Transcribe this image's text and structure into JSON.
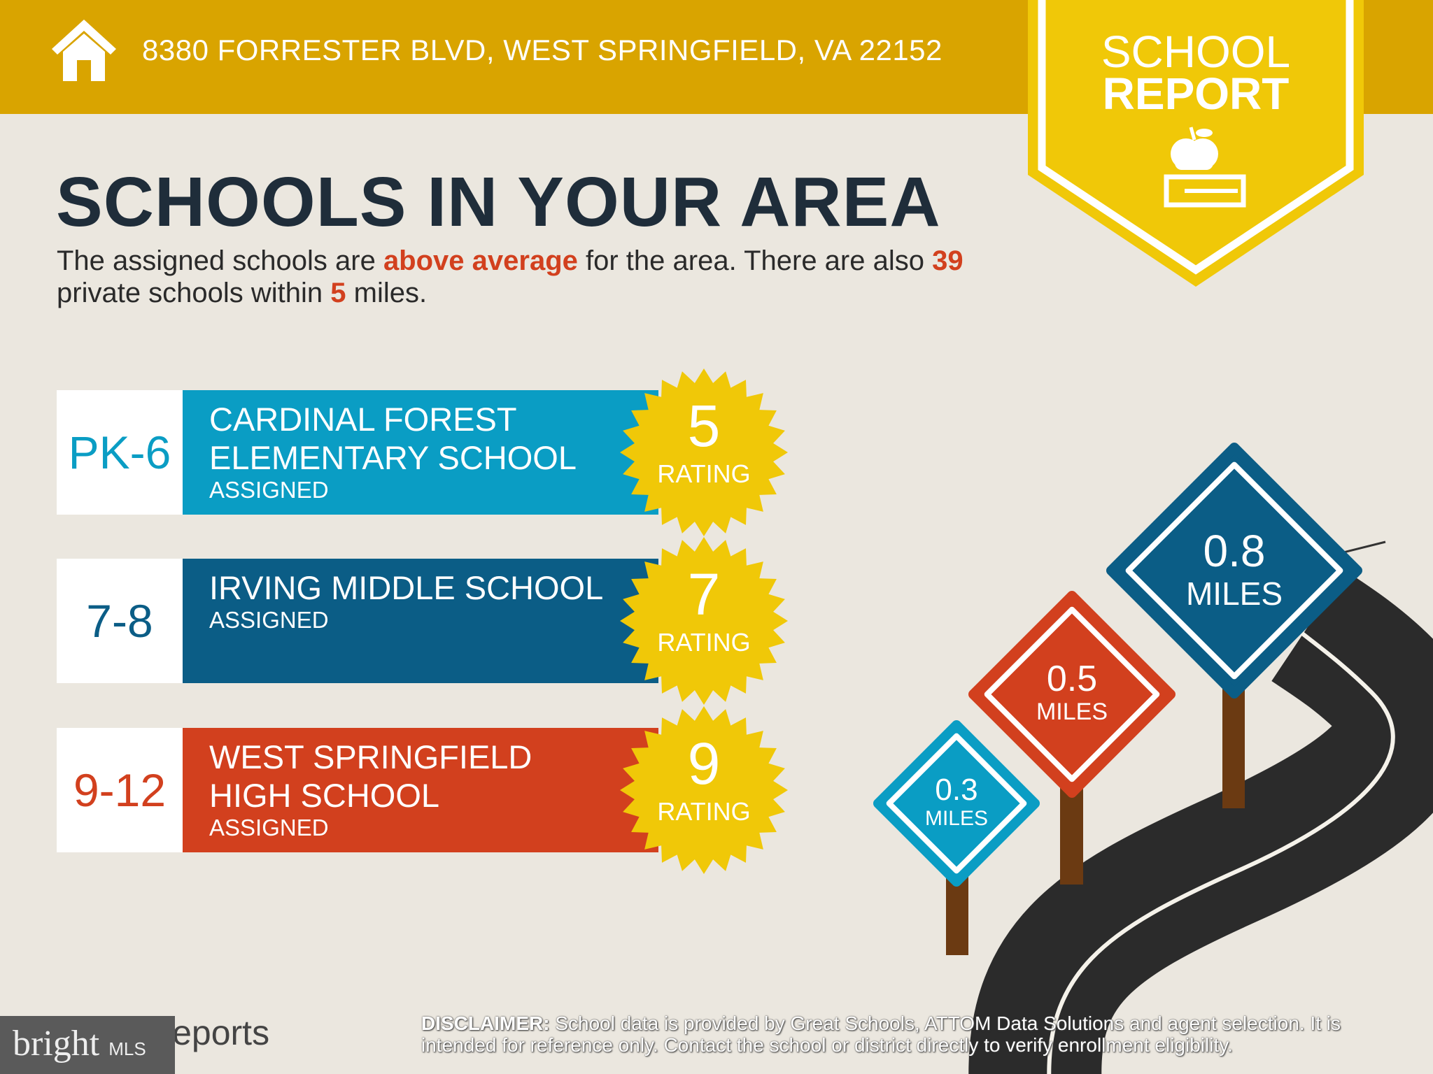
{
  "header": {
    "address": "8380 FORRESTER BLVD, WEST SPRINGFIELD, VA 22152"
  },
  "badge": {
    "line1": "SCHOOL",
    "line2": "REPORT"
  },
  "title": "SCHOOLS IN YOUR AREA",
  "intro": {
    "p1": "The assigned schools are ",
    "hl1": "above average",
    "p2": " for the area. There are also ",
    "hl2": "39",
    "p3": " private schools within ",
    "hl3": "5",
    "p4": " miles."
  },
  "schools": [
    {
      "grade": "PK-6",
      "name1": "CARDINAL FOREST",
      "name2": "ELEMENTARY SCHOOL",
      "status": "ASSIGNED",
      "rating": "5",
      "rating_label": "RATING",
      "color": "#0a9dc4"
    },
    {
      "grade": "7-8",
      "name1": "IRVING MIDDLE SCHOOL",
      "name2": "",
      "status": "ASSIGNED",
      "rating": "7",
      "rating_label": "RATING",
      "color": "#0b5d86"
    },
    {
      "grade": "9-12",
      "name1": "WEST SPRINGFIELD",
      "name2": "HIGH SCHOOL",
      "status": "ASSIGNED",
      "rating": "9",
      "rating_label": "RATING",
      "color": "#d2401e"
    }
  ],
  "signs": [
    {
      "value": "0.3",
      "unit": "MILES",
      "color": "#0a9dc4"
    },
    {
      "value": "0.5",
      "unit": "MILES",
      "color": "#d2401e"
    },
    {
      "value": "0.8",
      "unit": "MILES",
      "color": "#0b5d86"
    }
  ],
  "footer": {
    "logo_text": "Reports",
    "bright": "bright",
    "mls": "MLS",
    "disclaimer_label": "DISCLAIMER:",
    "disclaimer": " School data is provided by Great Schools, ATTOM Data Solutions and agent selection. It is intended for reference only. Contact the school or district directly to verify enrollment eligibility."
  },
  "colors": {
    "header": "#d9a400",
    "badge": "#f0c808",
    "star": "#f0c808",
    "background": "#ebe7df"
  }
}
